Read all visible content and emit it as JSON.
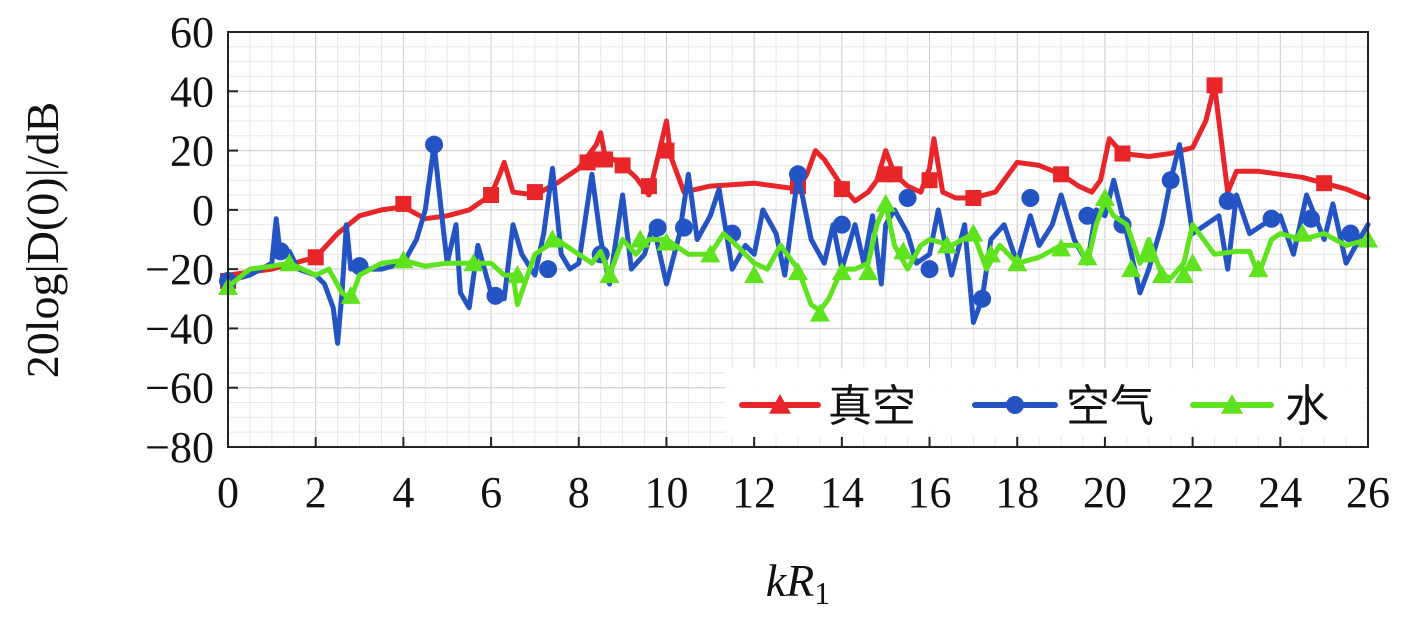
{
  "chart_data": {
    "type": "line",
    "title": "",
    "xlabel": "kR",
    "xlabel_sub": "1",
    "ylabel": "20log|D(0)|/dB",
    "xlim": [
      0,
      26
    ],
    "ylim": [
      -80,
      60
    ],
    "xticks": [
      "0",
      "2",
      "4",
      "6",
      "8",
      "10",
      "12",
      "14",
      "16",
      "18",
      "20",
      "22",
      "24",
      "26"
    ],
    "yticks": [
      "60",
      "40",
      "20",
      "0",
      "−20",
      "−40",
      "−60",
      "−80"
    ],
    "grid": true,
    "legend_position": "bottom-right",
    "series": [
      {
        "name": "真空",
        "color": "#e8262a",
        "marker": "square",
        "x": [
          0,
          1,
          2,
          2.5,
          3,
          3.5,
          4,
          4.5,
          5,
          5.5,
          6,
          6.2,
          6.3,
          6.5,
          7,
          7.5,
          8,
          8.2,
          8.4,
          8.5,
          8.6,
          8.8,
          9,
          9.3,
          9.6,
          10,
          10.1,
          10.4,
          11,
          12,
          13,
          13.2,
          13.4,
          13.6,
          14,
          14.3,
          14.6,
          14.8,
          15,
          15.2,
          15.5,
          15.8,
          16,
          16.1,
          16.3,
          16.6,
          17,
          17.5,
          18,
          18.5,
          19,
          19.4,
          19.7,
          19.9,
          20.1,
          20.4,
          21,
          21.5,
          22,
          22.3,
          22.5,
          22.6,
          22.8,
          23,
          23.5,
          24,
          24.5,
          25,
          25.5,
          26
        ],
        "y": [
          -22,
          -20,
          -16,
          -8,
          -2,
          0,
          1,
          -3,
          -2,
          0,
          5,
          12,
          16,
          6,
          5,
          9,
          14,
          18,
          22,
          26,
          18,
          17,
          15,
          11,
          5,
          30,
          18,
          6,
          8,
          9,
          7,
          12,
          20,
          17,
          8,
          3,
          6,
          10,
          20,
          12,
          8,
          6,
          14,
          24,
          6,
          4,
          4,
          6,
          16,
          15,
          12,
          8,
          6,
          10,
          24,
          19,
          18,
          19,
          21,
          30,
          42,
          30,
          6,
          13,
          13,
          12,
          11,
          9,
          7,
          4
        ],
        "marker_x": [
          0,
          2,
          4,
          6,
          7,
          8.2,
          8.4,
          8.6,
          9,
          9.6,
          10,
          13,
          14,
          15,
          15.2,
          16,
          17,
          19,
          20.4,
          22.5,
          25
        ],
        "marker_y": [
          -24,
          -16,
          2,
          5,
          6,
          16,
          17,
          17,
          15,
          8,
          20,
          8,
          7,
          12,
          12,
          10,
          4,
          12,
          19,
          42,
          9
        ]
      },
      {
        "name": "空气",
        "color": "#2454c4",
        "marker": "circle",
        "x": [
          0,
          0.5,
          1,
          1.1,
          1.2,
          1.4,
          1.6,
          2,
          2.2,
          2.4,
          2.5,
          2.6,
          2.7,
          2.8,
          3,
          3.2,
          3.5,
          4,
          4.3,
          4.5,
          4.7,
          4.9,
          5,
          5.2,
          5.3,
          5.5,
          5.7,
          6,
          6.3,
          6.5,
          6.7,
          7,
          7.2,
          7.4,
          7.6,
          7.8,
          8,
          8.3,
          8.5,
          8.7,
          9,
          9.2,
          9.5,
          9.7,
          10,
          10.3,
          10.5,
          10.7,
          11,
          11.2,
          11.5,
          11.8,
          12,
          12.2,
          12.5,
          12.7,
          13,
          13.3,
          13.6,
          13.8,
          14,
          14.3,
          14.5,
          14.7,
          14.9,
          15,
          15.2,
          15.5,
          15.7,
          16,
          16.2,
          16.5,
          16.8,
          17,
          17.2,
          17.4,
          17.7,
          18,
          18.3,
          18.5,
          18.8,
          19,
          19.3,
          19.6,
          19.8,
          20,
          20.2,
          20.5,
          20.8,
          21,
          21.3,
          21.5,
          21.7,
          22,
          22.3,
          22.6,
          22.8,
          23,
          23.3,
          23.6,
          24,
          24.3,
          24.6,
          25,
          25.2,
          25.5,
          25.8,
          26
        ],
        "y": [
          -24,
          -22,
          -18,
          -3,
          -16,
          -14,
          -20,
          -22,
          -25,
          -33,
          -45,
          -28,
          -5,
          -20,
          -18,
          -20,
          -20,
          -18,
          -10,
          0,
          22,
          -5,
          -18,
          -5,
          -28,
          -33,
          -12,
          -28,
          -30,
          -5,
          -15,
          -22,
          -8,
          14,
          -15,
          -20,
          -18,
          12,
          -10,
          -25,
          5,
          -20,
          -15,
          -5,
          -25,
          -8,
          12,
          -10,
          -2,
          7,
          -20,
          -12,
          -15,
          0,
          -8,
          -22,
          12,
          -10,
          -18,
          -5,
          -20,
          -5,
          -18,
          -2,
          -25,
          -5,
          0,
          -8,
          -18,
          -15,
          0,
          -22,
          -5,
          -38,
          -30,
          -10,
          -5,
          -18,
          -2,
          -12,
          -5,
          5,
          -10,
          -18,
          0,
          -2,
          10,
          -8,
          -28,
          -20,
          -5,
          10,
          22,
          -8,
          -5,
          -2,
          -20,
          5,
          -8,
          -5,
          -2,
          -15,
          5,
          -10,
          2,
          -18,
          -10,
          -5
        ],
        "marker_x": [
          0,
          1.2,
          3,
          4.7,
          6.1,
          7.3,
          8.5,
          9.8,
          10.4,
          11.5,
          13,
          14,
          15.5,
          16,
          17.2,
          18.3,
          19.6,
          20.4,
          21.5,
          22.8,
          23.8,
          24.7,
          25.6
        ],
        "marker_y": [
          -24,
          -14,
          -19,
          22,
          -29,
          -20,
          -15,
          -6,
          -6,
          -8,
          12,
          -5,
          4,
          -20,
          -30,
          4,
          -2,
          -5,
          10,
          3,
          -3,
          -3,
          -8
        ]
      },
      {
        "name": "水",
        "color": "#5fe31e",
        "marker": "triangle",
        "x": [
          0,
          0.5,
          1,
          1.4,
          2,
          2.3,
          2.6,
          2.8,
          3,
          3.5,
          4,
          4.5,
          5,
          5.5,
          6,
          6.3,
          6.5,
          6.6,
          7,
          7.5,
          8,
          8.3,
          8.5,
          8.7,
          9,
          9.3,
          9.6,
          10,
          10.5,
          11,
          11.3,
          11.6,
          12,
          12.3,
          12.6,
          13,
          13.3,
          13.5,
          13.7,
          14,
          14.3,
          14.6,
          14.8,
          15,
          15.2,
          15.5,
          15.8,
          16,
          16.5,
          17,
          17.3,
          17.6,
          18,
          18.5,
          19,
          19.4,
          19.6,
          19.8,
          20,
          20.2,
          20.5,
          20.8,
          21,
          21.3,
          21.5,
          21.8,
          22,
          22.5,
          23,
          23.3,
          23.5,
          23.8,
          24,
          24.5,
          25,
          25.5,
          26
        ],
        "y": [
          -26,
          -20,
          -19,
          -18,
          -22,
          -20,
          -28,
          -30,
          -22,
          -18,
          -17,
          -19,
          -18,
          -18,
          -18,
          -22,
          -22,
          -32,
          -15,
          -10,
          -15,
          -18,
          -14,
          -22,
          -10,
          -15,
          -10,
          -10,
          -15,
          -15,
          -8,
          -12,
          -18,
          -20,
          -12,
          -20,
          -32,
          -34,
          -30,
          -20,
          -20,
          -18,
          -5,
          2,
          -12,
          -20,
          -12,
          -10,
          -12,
          -8,
          -20,
          -12,
          -18,
          -16,
          -12,
          -12,
          -18,
          -5,
          3,
          -2,
          -5,
          -18,
          -10,
          -22,
          -23,
          -18,
          -5,
          -15,
          -14,
          -14,
          -22,
          -10,
          -8,
          -10,
          -8,
          -12,
          -10
        ],
        "marker_x": [
          0,
          1.4,
          2.8,
          4,
          5.6,
          6.6,
          7.4,
          8.7,
          9.4,
          10,
          11,
          12,
          13,
          13.5,
          14,
          14.6,
          15,
          15.4,
          16.4,
          17,
          17.4,
          18,
          19,
          19.6,
          20,
          20.6,
          21,
          21.3,
          21.8,
          22,
          23.5,
          24.5,
          26
        ],
        "marker_y": [
          -26,
          -18,
          -29,
          -17,
          -18,
          -22,
          -10,
          -22,
          -10,
          -11,
          -15,
          -22,
          -21,
          -35,
          -21,
          -21,
          2,
          -14,
          -12,
          -8,
          -15,
          -18,
          -13,
          -16,
          4,
          -20,
          -15,
          -22,
          -22,
          -18,
          -20,
          -8,
          -10
        ]
      }
    ]
  }
}
